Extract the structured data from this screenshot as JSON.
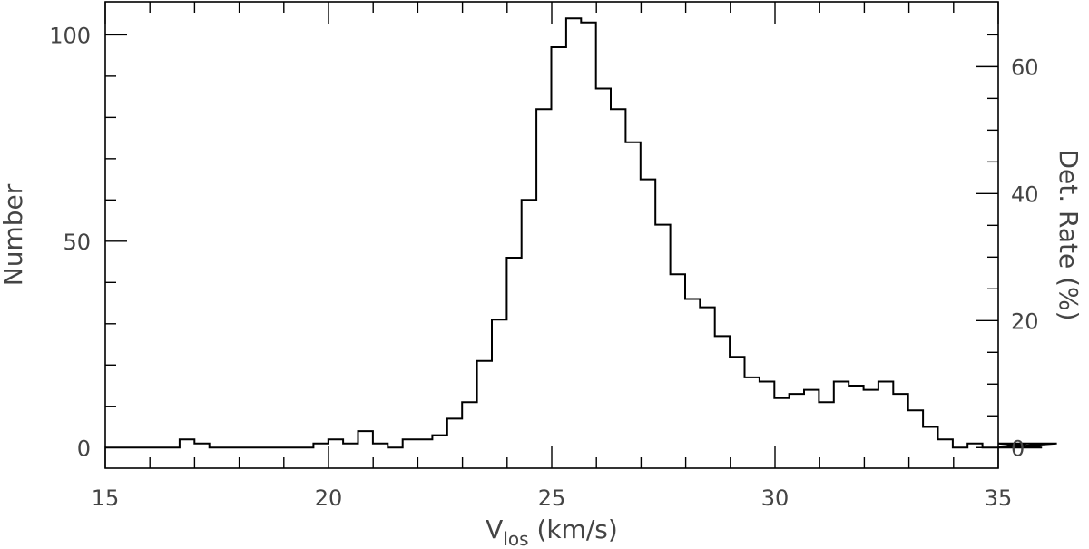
{
  "chart_data": {
    "type": "histogram",
    "title": "",
    "xlabel_main": "V",
    "xlabel_sub": "los",
    "xlabel_unit": " (km/s)",
    "ylabel": "Number",
    "y2label": "Det. Rate (%)",
    "xlim": [
      15,
      35
    ],
    "ylim": [
      -5,
      108
    ],
    "y2lim": [
      -3.25,
      70.2
    ],
    "xticks": [
      15,
      20,
      25,
      30,
      35
    ],
    "yticks": [
      0,
      50,
      100
    ],
    "y2ticks": [
      0,
      20,
      40,
      60
    ],
    "bin_width": 0.333,
    "bin_edges_start": 15.0,
    "values": [
      0,
      0,
      0,
      0,
      0,
      2,
      1,
      0,
      0,
      0,
      0,
      0,
      0,
      0,
      1,
      2,
      1,
      4,
      1,
      0,
      2,
      2,
      3,
      7,
      11,
      21,
      31,
      46,
      60,
      82,
      97,
      104,
      103,
      87,
      82,
      74,
      65,
      54,
      42,
      36,
      34,
      27,
      22,
      17,
      16,
      12,
      13,
      14,
      11,
      16,
      15,
      14,
      16,
      13,
      9,
      5,
      2,
      0,
      1,
      0,
      0,
      0,
      1,
      0,
      1
    ]
  }
}
